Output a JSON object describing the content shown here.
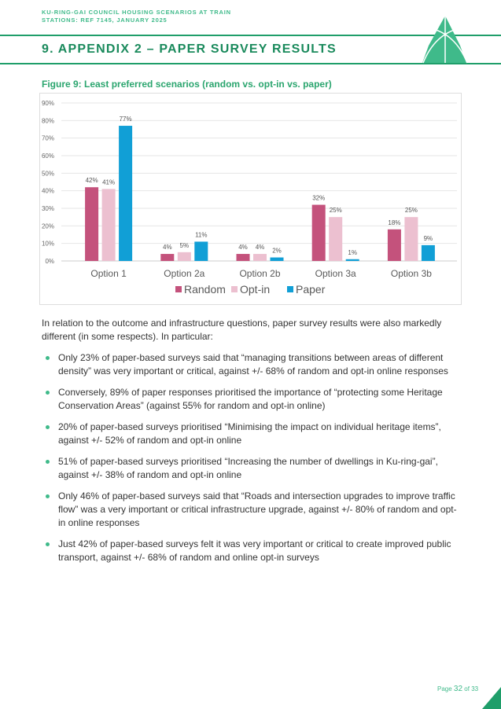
{
  "header": {
    "line1": "KU-RING-GAI  COUNCIL  HOUSING  SCENARIOS  AT TRAIN",
    "line2": "STATIONS:  REF 7145,  JANUARY  2025"
  },
  "title": "9. APPENDIX 2 – PAPER SURVEY RESULTS",
  "figure_caption": "Figure 9: Least preferred scenarios (random vs. opt-in vs. paper)",
  "chart_data": {
    "type": "bar",
    "title": "",
    "xlabel": "",
    "ylabel": "",
    "ylim": [
      0,
      90
    ],
    "yticks": [
      "0%",
      "10%",
      "20%",
      "30%",
      "40%",
      "50%",
      "60%",
      "70%",
      "80%",
      "90%"
    ],
    "categories": [
      "Option 1",
      "Option 2a",
      "Option 2b",
      "Option 3a",
      "Option 3b"
    ],
    "series": [
      {
        "name": "Random",
        "color": "#c4527c",
        "values": [
          42,
          4,
          4,
          32,
          18
        ]
      },
      {
        "name": "Opt-in",
        "color": "#ecc0d0",
        "values": [
          41,
          5,
          4,
          25,
          25
        ]
      },
      {
        "name": "Paper",
        "color": "#119fd6",
        "values": [
          77,
          11,
          2,
          1,
          9
        ]
      }
    ],
    "legend": "bottom",
    "grid": true
  },
  "body": {
    "intro": "In relation to the outcome and infrastructure questions, paper survey results were also markedly different (in some respects). In particular:",
    "bullets": [
      "Only 23% of paper-based surveys said that “managing transitions between areas of different density” was very important or critical, against +/- 68% of random and opt-in online responses",
      "Conversely, 89% of paper responses prioritised the importance of “protecting some Heritage Conservation Areas” (against 55% for random and opt-in online)",
      "20% of paper-based surveys prioritised “Minimising the impact on individual heritage items”, against +/- 52% of random and opt-in online",
      "51% of paper-based surveys prioritised “Increasing the number of dwellings in Ku-ring-gai”, against +/- 38% of random and opt-in online",
      "Only 46% of paper-based surveys said that “Roads and intersection upgrades to improve traffic flow” was a very important or critical infrastructure upgrade, against +/- 80% of random and opt-in online responses",
      "Just 42% of paper-based surveys felt it was very important or critical to create improved public transport, against +/- 68% of random and online opt-in surveys"
    ]
  },
  "footer": {
    "page_label": "Page",
    "page": "32",
    "of_label": "of",
    "total": "33"
  }
}
